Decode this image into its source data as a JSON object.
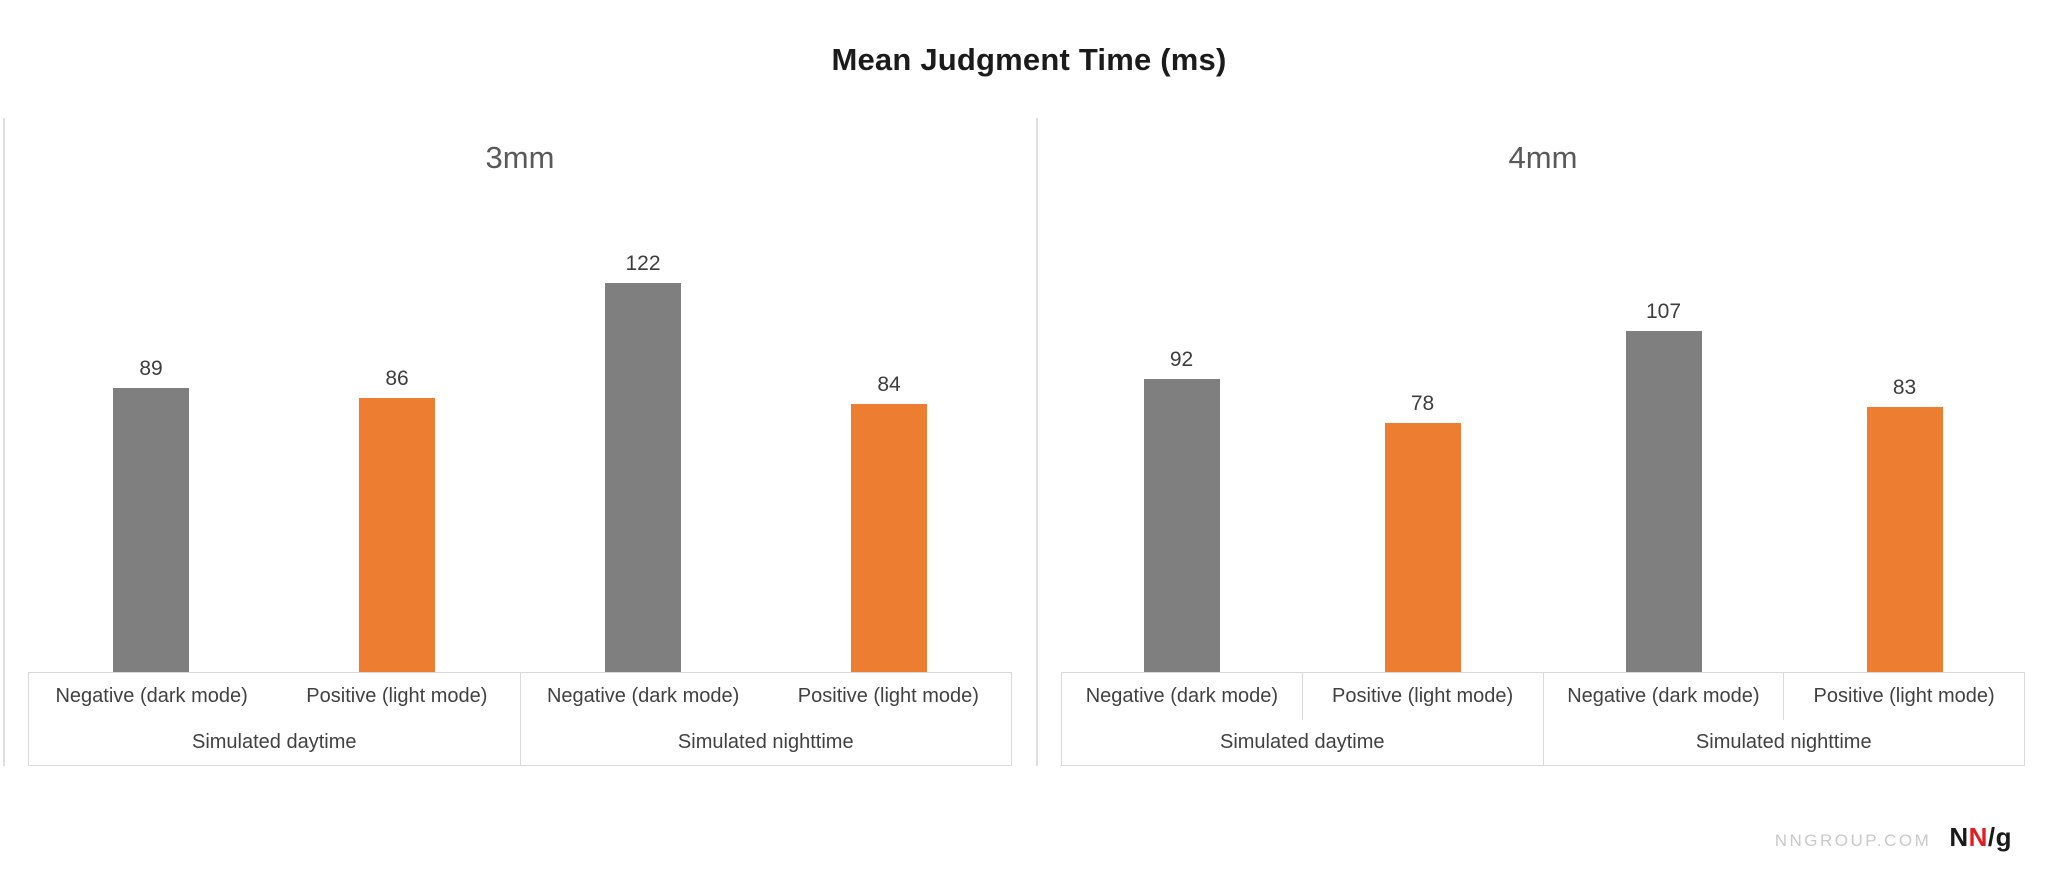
{
  "chart_data": {
    "type": "bar",
    "title": "Mean Judgment Time (ms)",
    "unit": "ms",
    "y_axis_visible": false,
    "gridlines": false,
    "legend_position": "none",
    "data_labels": true,
    "colors": {
      "negative": "#7f7f7f",
      "positive": "#ed7d31"
    },
    "panels": [
      {
        "label": "3mm",
        "groups": [
          {
            "label": "Simulated daytime",
            "bars": [
              {
                "category": "Negative (dark mode)",
                "series": "negative",
                "value": 89
              },
              {
                "category": "Positive (light mode)",
                "series": "positive",
                "value": 86
              }
            ]
          },
          {
            "label": "Simulated nighttime",
            "bars": [
              {
                "category": "Negative (dark mode)",
                "series": "negative",
                "value": 122
              },
              {
                "category": "Positive (light mode)",
                "series": "positive",
                "value": 84
              }
            ]
          }
        ]
      },
      {
        "label": "4mm",
        "groups": [
          {
            "label": "Simulated daytime",
            "bars": [
              {
                "category": "Negative (dark mode)",
                "series": "negative",
                "value": 92
              },
              {
                "category": "Positive (light mode)",
                "series": "positive",
                "value": 78
              }
            ]
          },
          {
            "label": "Simulated nighttime",
            "bars": [
              {
                "category": "Negative (dark mode)",
                "series": "negative",
                "value": 107
              },
              {
                "category": "Positive (light mode)",
                "series": "positive",
                "value": 83
              }
            ]
          }
        ]
      }
    ]
  },
  "footer": {
    "site_label": "NNGROUP.COM",
    "logo": {
      "black_n": "N",
      "red_n": "N",
      "suffix": "/g",
      "red_color": "#e31b23"
    }
  }
}
